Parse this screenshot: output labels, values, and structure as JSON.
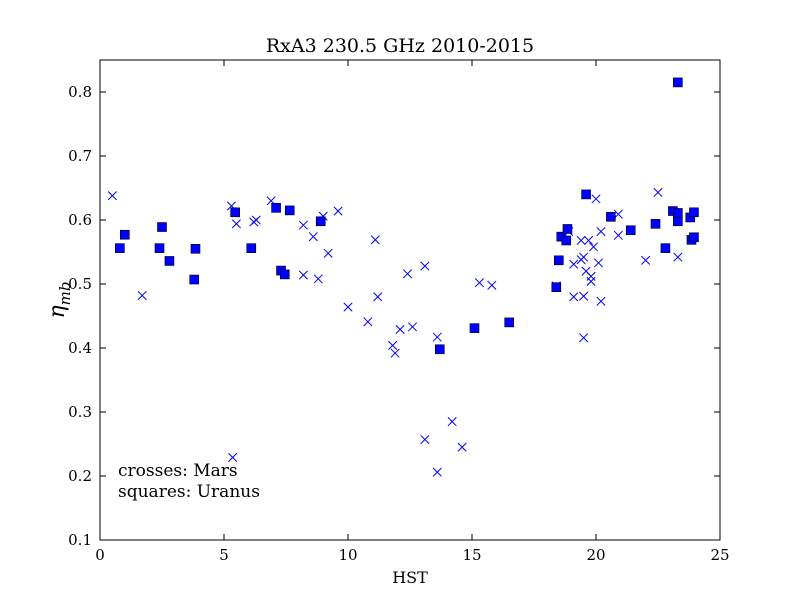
{
  "chart_data": {
    "type": "scatter",
    "title": "RxA3 230.5 GHz 2010-2015",
    "xlabel": "HST",
    "ylabel_main": "η",
    "ylabel_sub": "mb",
    "xlim": [
      0,
      25
    ],
    "ylim": [
      0.1,
      0.85
    ],
    "xticks": [
      0,
      5,
      10,
      15,
      20,
      25
    ],
    "yticks": [
      0.1,
      0.2,
      0.3,
      0.4,
      0.5,
      0.6,
      0.7,
      0.8
    ],
    "xtick_labels": [
      "0",
      "5",
      "10",
      "15",
      "20",
      "25"
    ],
    "ytick_labels": [
      "0.1",
      "0.2",
      "0.3",
      "0.4",
      "0.5",
      "0.6",
      "0.7",
      "0.8"
    ],
    "grid": false,
    "annotations": [
      "crosses: Mars",
      "squares: Uranus"
    ],
    "color": "#0000ff",
    "series": [
      {
        "marker": "x",
        "points": [
          [
            0.5,
            0.638
          ],
          [
            1.7,
            0.482
          ],
          [
            5.3,
            0.622
          ],
          [
            5.5,
            0.594
          ],
          [
            5.35,
            0.229
          ],
          [
            6.2,
            0.597
          ],
          [
            6.3,
            0.6
          ],
          [
            6.9,
            0.63
          ],
          [
            8.2,
            0.592
          ],
          [
            8.2,
            0.514
          ],
          [
            8.6,
            0.574
          ],
          [
            8.8,
            0.508
          ],
          [
            9.0,
            0.606
          ],
          [
            9.2,
            0.548
          ],
          [
            9.6,
            0.614
          ],
          [
            10.0,
            0.464
          ],
          [
            10.8,
            0.441
          ],
          [
            11.1,
            0.569
          ],
          [
            11.2,
            0.48
          ],
          [
            11.8,
            0.404
          ],
          [
            11.9,
            0.392
          ],
          [
            12.1,
            0.429
          ],
          [
            12.4,
            0.516
          ],
          [
            12.6,
            0.433
          ],
          [
            13.1,
            0.528
          ],
          [
            13.1,
            0.257
          ],
          [
            13.6,
            0.417
          ],
          [
            13.6,
            0.206
          ],
          [
            14.2,
            0.285
          ],
          [
            14.6,
            0.245
          ],
          [
            15.3,
            0.502
          ],
          [
            15.8,
            0.498
          ],
          [
            18.4,
            0.497
          ],
          [
            18.9,
            0.582
          ],
          [
            19.1,
            0.531
          ],
          [
            19.1,
            0.48
          ],
          [
            19.4,
            0.568
          ],
          [
            19.4,
            0.538
          ],
          [
            19.5,
            0.542
          ],
          [
            19.5,
            0.481
          ],
          [
            19.5,
            0.416
          ],
          [
            19.6,
            0.52
          ],
          [
            19.7,
            0.568
          ],
          [
            19.8,
            0.512
          ],
          [
            19.8,
            0.504
          ],
          [
            19.9,
            0.558
          ],
          [
            20.0,
            0.633
          ],
          [
            20.1,
            0.533
          ],
          [
            20.2,
            0.582
          ],
          [
            20.2,
            0.473
          ],
          [
            20.9,
            0.609
          ],
          [
            20.9,
            0.576
          ],
          [
            22.0,
            0.537
          ],
          [
            22.5,
            0.643
          ],
          [
            23.3,
            0.542
          ]
        ]
      },
      {
        "marker": "square",
        "points": [
          [
            0.8,
            0.556
          ],
          [
            1.0,
            0.577
          ],
          [
            2.4,
            0.556
          ],
          [
            2.5,
            0.589
          ],
          [
            2.8,
            0.536
          ],
          [
            3.8,
            0.507
          ],
          [
            3.85,
            0.555
          ],
          [
            5.45,
            0.612
          ],
          [
            6.1,
            0.556
          ],
          [
            7.1,
            0.619
          ],
          [
            7.3,
            0.521
          ],
          [
            7.45,
            0.515
          ],
          [
            7.65,
            0.615
          ],
          [
            8.9,
            0.598
          ],
          [
            13.7,
            0.398
          ],
          [
            15.1,
            0.431
          ],
          [
            16.5,
            0.44
          ],
          [
            18.4,
            0.495
          ],
          [
            18.5,
            0.537
          ],
          [
            18.6,
            0.574
          ],
          [
            18.8,
            0.568
          ],
          [
            18.85,
            0.586
          ],
          [
            19.6,
            0.64
          ],
          [
            20.6,
            0.605
          ],
          [
            21.4,
            0.584
          ],
          [
            22.4,
            0.594
          ],
          [
            22.8,
            0.556
          ],
          [
            23.1,
            0.614
          ],
          [
            23.3,
            0.598
          ],
          [
            23.3,
            0.611
          ],
          [
            23.3,
            0.815
          ],
          [
            23.8,
            0.604
          ],
          [
            23.85,
            0.569
          ],
          [
            23.95,
            0.573
          ],
          [
            23.95,
            0.612
          ]
        ]
      }
    ]
  }
}
